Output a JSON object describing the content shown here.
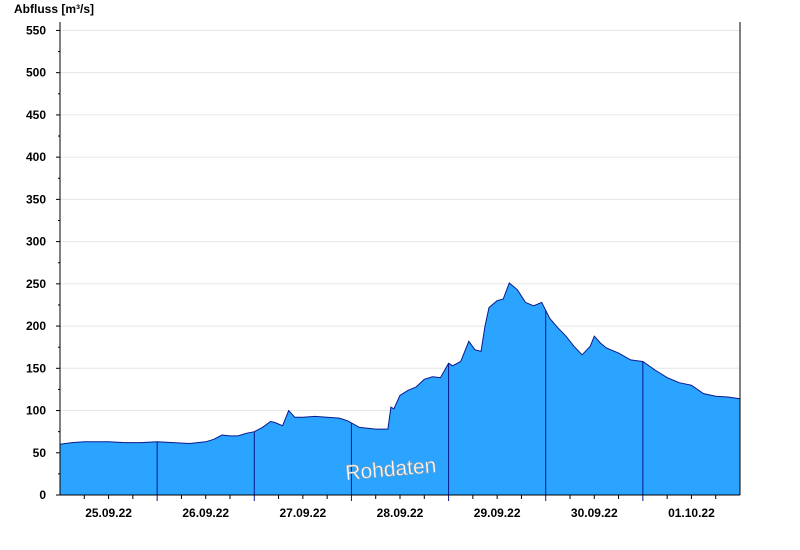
{
  "chart_data": {
    "type": "area",
    "ylabel": "Abfluss [m³/s]",
    "xlabel": "",
    "title": "",
    "ylim": [
      0,
      560
    ],
    "yticks": [
      0,
      50,
      100,
      150,
      200,
      250,
      300,
      350,
      400,
      450,
      500,
      550
    ],
    "xlim": [
      "2022-09-24T12:00",
      "2022-10-01T12:00"
    ],
    "xticks": [
      {
        "date": "2022-09-25",
        "label": "25.09.22"
      },
      {
        "date": "2022-09-26",
        "label": "26.09.22"
      },
      {
        "date": "2022-09-27",
        "label": "27.09.22"
      },
      {
        "date": "2022-09-28",
        "label": "28.09.22"
      },
      {
        "date": "2022-09-29",
        "label": "29.09.22"
      },
      {
        "date": "2022-09-30",
        "label": "30.09.22"
      },
      {
        "date": "2022-10-01",
        "label": "01.10.22"
      }
    ],
    "grid": true,
    "watermark": "Rohdaten",
    "fill_color": "#2aa4ff",
    "line_color": "#0a1a8c",
    "series": [
      {
        "x": [
          "2022-09-24T12:00",
          "2022-09-24T15:00",
          "2022-09-24T18:00",
          "2022-09-24T21:00",
          "2022-09-25T00:00",
          "2022-09-25T04:00",
          "2022-09-25T08:00",
          "2022-09-25T12:00",
          "2022-09-25T16:00",
          "2022-09-25T20:00",
          "2022-09-25T22:00",
          "2022-09-26T00:00",
          "2022-09-26T02:00",
          "2022-09-26T04:00",
          "2022-09-26T06:00",
          "2022-09-26T08:00",
          "2022-09-26T10:00",
          "2022-09-26T12:00",
          "2022-09-26T14:00",
          "2022-09-26T16:00",
          "2022-09-26T17:00",
          "2022-09-26T19:00",
          "2022-09-26T20:30",
          "2022-09-26T22:00",
          "2022-09-27T00:00",
          "2022-09-27T03:00",
          "2022-09-27T06:00",
          "2022-09-27T09:00",
          "2022-09-27T11:00",
          "2022-09-27T14:00",
          "2022-09-27T18:00",
          "2022-09-27T21:00",
          "2022-09-27T21:45",
          "2022-09-27T22:30",
          "2022-09-28T00:00",
          "2022-09-28T02:00",
          "2022-09-28T04:00",
          "2022-09-28T06:00",
          "2022-09-28T08:00",
          "2022-09-28T10:00",
          "2022-09-28T12:00",
          "2022-09-28T13:00",
          "2022-09-28T15:00",
          "2022-09-28T17:00",
          "2022-09-28T18:30",
          "2022-09-28T20:00",
          "2022-09-28T21:00",
          "2022-09-28T22:00",
          "2022-09-29T00:00",
          "2022-09-29T01:30",
          "2022-09-29T03:00",
          "2022-09-29T05:00",
          "2022-09-29T07:00",
          "2022-09-29T09:00",
          "2022-09-29T11:00",
          "2022-09-29T13:00",
          "2022-09-29T15:00",
          "2022-09-29T17:00",
          "2022-09-29T19:00",
          "2022-09-29T21:00",
          "2022-09-29T23:00",
          "2022-09-30T00:00",
          "2022-09-30T01:30",
          "2022-09-30T03:00",
          "2022-09-30T06:00",
          "2022-09-30T09:00",
          "2022-09-30T12:00",
          "2022-09-30T15:00",
          "2022-09-30T18:00",
          "2022-09-30T21:00",
          "2022-10-01T00:00",
          "2022-10-01T03:00",
          "2022-10-01T06:00",
          "2022-10-01T09:00",
          "2022-10-01T12:00"
        ],
        "values": [
          60,
          62,
          63,
          63,
          63,
          62,
          62,
          63,
          62,
          61,
          62,
          63,
          66,
          71,
          70,
          70,
          73,
          75,
          80,
          87,
          86,
          82,
          100,
          92,
          92,
          93,
          92,
          91,
          88,
          80,
          78,
          78,
          104,
          102,
          118,
          124,
          128,
          137,
          140,
          139,
          156,
          153,
          158,
          182,
          172,
          170,
          200,
          222,
          230,
          232,
          251,
          243,
          228,
          224,
          228,
          209,
          198,
          188,
          176,
          166,
          176,
          188,
          180,
          174,
          168,
          160,
          158,
          148,
          139,
          133,
          130,
          120,
          117,
          116,
          114
        ]
      }
    ]
  }
}
